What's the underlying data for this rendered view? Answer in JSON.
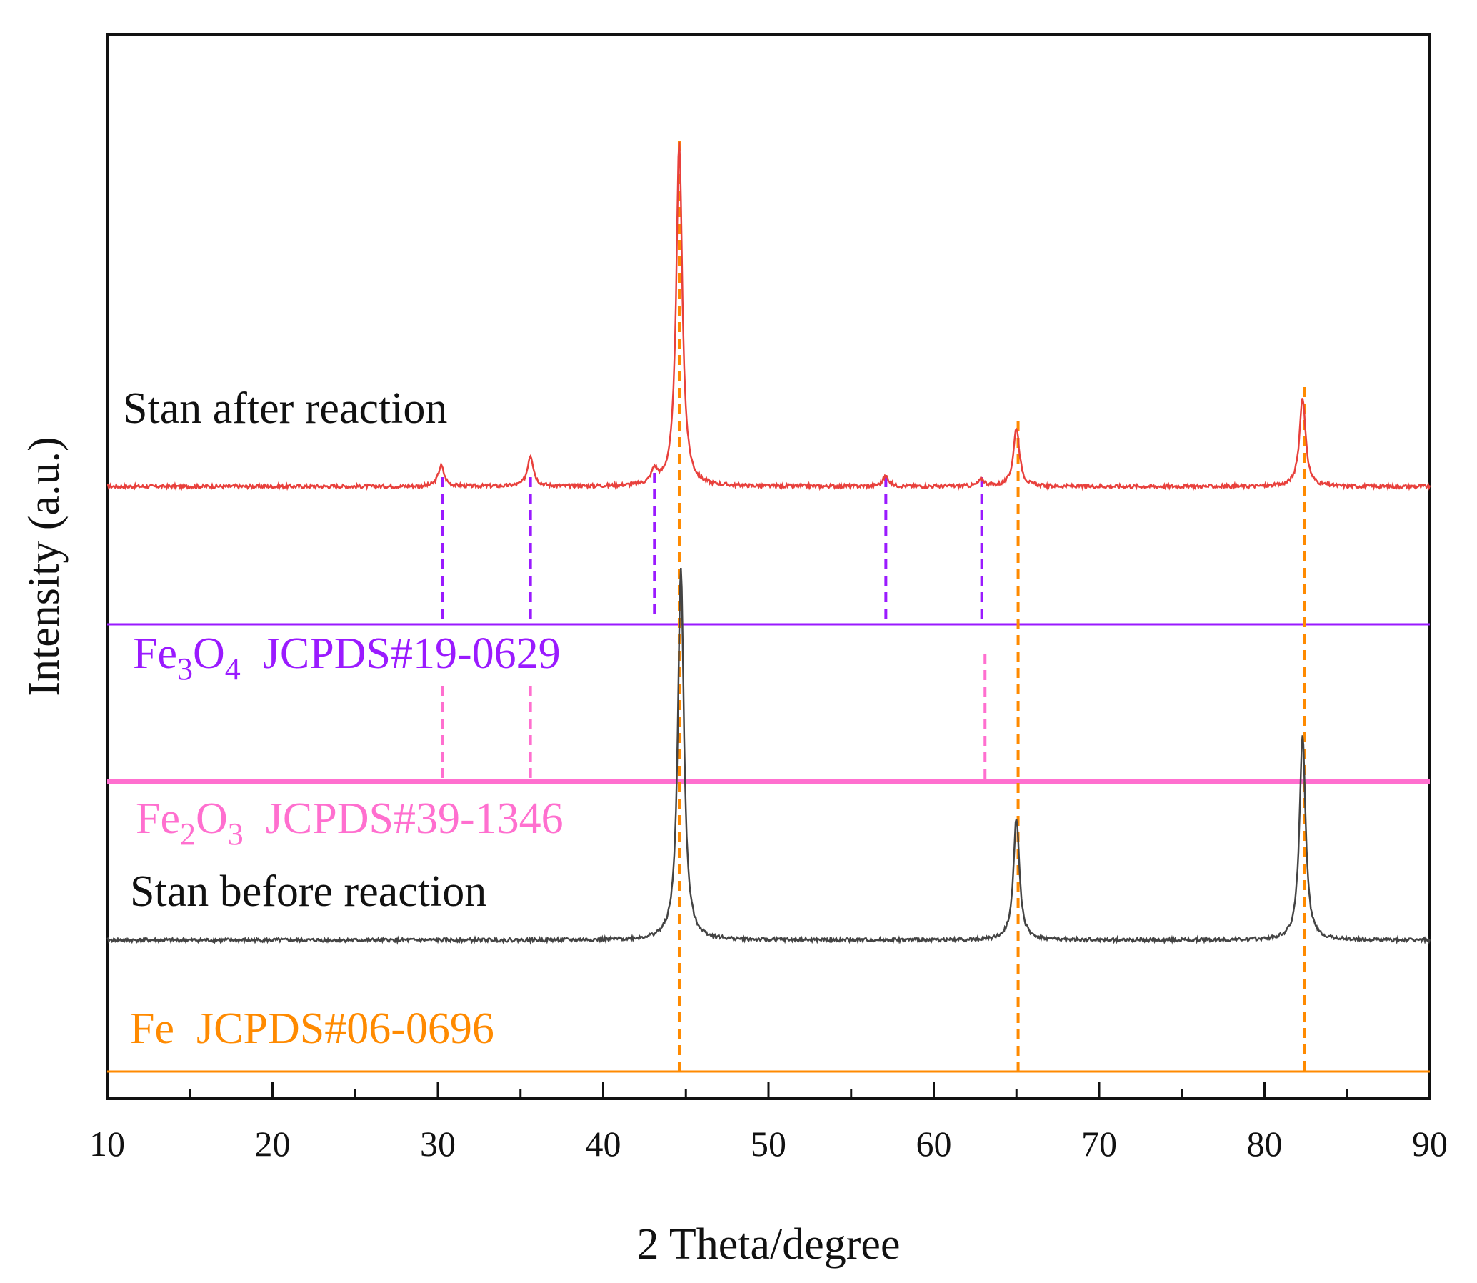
{
  "chart_data": {
    "type": "line",
    "title": "",
    "xlabel": "2 Theta/degree",
    "ylabel": "Intensity (a.u.)",
    "xlim": [
      10,
      90
    ],
    "xticks": [
      10,
      20,
      30,
      40,
      50,
      60,
      70,
      80,
      90
    ],
    "y_ticks_shown": false,
    "series": [
      {
        "name": "Stan after reaction",
        "color": "#e8403c",
        "peaks": [
          {
            "two_theta": 30.2,
            "relative_intensity": 0.06
          },
          {
            "two_theta": 35.6,
            "relative_intensity": 0.09
          },
          {
            "two_theta": 43.1,
            "relative_intensity": 0.04
          },
          {
            "two_theta": 44.6,
            "relative_intensity": 1.0
          },
          {
            "two_theta": 57.1,
            "relative_intensity": 0.03
          },
          {
            "two_theta": 62.9,
            "relative_intensity": 0.02
          },
          {
            "two_theta": 65.0,
            "relative_intensity": 0.17
          },
          {
            "two_theta": 82.3,
            "relative_intensity": 0.26
          }
        ]
      },
      {
        "name": "Stan before reaction",
        "color": "#444444",
        "peaks": [
          {
            "two_theta": 44.7,
            "relative_intensity": 1.0
          },
          {
            "two_theta": 65.0,
            "relative_intensity": 0.33
          },
          {
            "two_theta": 82.3,
            "relative_intensity": 0.55
          }
        ]
      }
    ],
    "references": [
      {
        "name": "Fe3O4",
        "label_base": "Fe",
        "sub1": "3",
        "mid": "O",
        "sub2": "4",
        "code": "JCPDS#19-0629",
        "color": "#9a1aff",
        "lines": [
          30.3,
          35.6,
          43.1,
          57.1,
          62.9
        ]
      },
      {
        "name": "Fe2O3",
        "label_base": "Fe",
        "sub1": "2",
        "mid": "O",
        "sub2": "3",
        "code": "JCPDS#39-1346",
        "color": "#ff6fcf",
        "lines": [
          30.3,
          35.6,
          63.1
        ]
      },
      {
        "name": "Fe",
        "label_base": "Fe",
        "sub1": "",
        "mid": "",
        "sub2": "",
        "code": "JCPDS#06-0696",
        "color": "#ff8a00",
        "lines": [
          44.6,
          65.1,
          82.4
        ]
      }
    ]
  }
}
